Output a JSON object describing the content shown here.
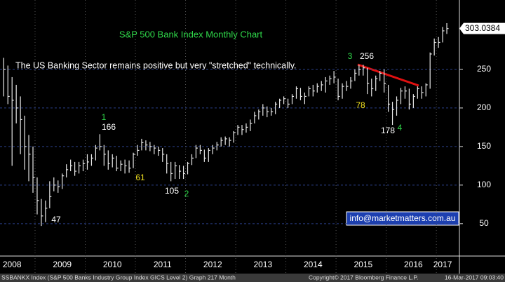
{
  "chart_data": {
    "type": "hlc",
    "title": "S&P 500 Bank Index Monthly Chart",
    "subtitle": "The US Banking Sector remains positive but very \"stretched\" technically.",
    "categories": [
      null,
      null,
      "2008",
      null,
      null,
      null,
      null,
      null,
      null,
      null,
      null,
      null,
      null,
      null,
      "2009",
      null,
      null,
      null,
      null,
      null,
      null,
      null,
      null,
      null,
      null,
      null,
      "2010",
      null,
      null,
      null,
      null,
      null,
      null,
      null,
      null,
      null,
      null,
      null,
      "2011",
      null,
      null,
      null,
      null,
      null,
      null,
      null,
      null,
      null,
      null,
      null,
      "2012",
      null,
      null,
      null,
      null,
      null,
      null,
      null,
      null,
      null,
      null,
      null,
      "2013",
      null,
      null,
      null,
      null,
      null,
      null,
      null,
      null,
      null,
      null,
      null,
      "2014",
      null,
      null,
      null,
      null,
      null,
      null,
      null,
      null,
      null,
      null,
      null,
      "2015",
      null,
      null,
      null,
      null,
      null,
      null,
      null,
      null,
      null,
      null,
      null,
      "2016",
      null,
      null,
      null,
      null,
      null,
      null,
      "2017",
      null
    ],
    "high": [
      265,
      255,
      240,
      230,
      215,
      190,
      165,
      150,
      110,
      82,
      80,
      105,
      110,
      106,
      115,
      127,
      133,
      130,
      130,
      133,
      140,
      140,
      152,
      166,
      152,
      145,
      140,
      138,
      132,
      133,
      132,
      142,
      152,
      160,
      158,
      156,
      152,
      150,
      148,
      140,
      130,
      130,
      126,
      125,
      130,
      140,
      152,
      152,
      146,
      148,
      152,
      156,
      162,
      163,
      162,
      170,
      178,
      178,
      180,
      185,
      195,
      198,
      205,
      202,
      200,
      208,
      212,
      215,
      212,
      218,
      228,
      226,
      220,
      228,
      230,
      232,
      235,
      240,
      242,
      248,
      238,
      232,
      235,
      240,
      250,
      256,
      256,
      252,
      238,
      242,
      248,
      250,
      230,
      208,
      215,
      226,
      228,
      225,
      218,
      228,
      228,
      232,
      272,
      290,
      292,
      305,
      310
    ],
    "low": [
      215,
      205,
      125,
      180,
      140,
      120,
      105,
      90,
      62,
      47,
      52,
      70,
      92,
      90,
      95,
      110,
      118,
      112,
      115,
      118,
      120,
      125,
      132,
      145,
      125,
      120,
      123,
      118,
      118,
      115,
      116,
      122,
      138,
      145,
      145,
      144,
      140,
      138,
      130,
      115,
      105,
      108,
      108,
      108,
      114,
      126,
      135,
      140,
      130,
      130,
      140,
      145,
      150,
      152,
      150,
      155,
      165,
      165,
      168,
      170,
      180,
      185,
      190,
      188,
      190,
      192,
      200,
      205,
      200,
      205,
      212,
      210,
      205,
      215,
      215,
      220,
      222,
      220,
      230,
      232,
      210,
      212,
      222,
      225,
      235,
      242,
      242,
      218,
      215,
      222,
      235,
      220,
      195,
      178,
      190,
      205,
      212,
      198,
      200,
      212,
      212,
      215,
      225,
      268,
      278,
      285,
      296
    ],
    "close": [
      250,
      215,
      210,
      200,
      185,
      150,
      140,
      110,
      80,
      60,
      70,
      85,
      100,
      98,
      112,
      120,
      125,
      118,
      125,
      128,
      130,
      135,
      148,
      150,
      140,
      128,
      135,
      122,
      127,
      125,
      122,
      140,
      145,
      155,
      152,
      150,
      148,
      145,
      140,
      128,
      115,
      125,
      118,
      115,
      128,
      135,
      148,
      145,
      135,
      145,
      148,
      152,
      158,
      160,
      158,
      168,
      175,
      172,
      175,
      180,
      190,
      195,
      200,
      195,
      195,
      205,
      210,
      212,
      205,
      215,
      225,
      215,
      215,
      225,
      222,
      228,
      230,
      235,
      238,
      240,
      215,
      228,
      228,
      235,
      245,
      250,
      252,
      232,
      225,
      238,
      245,
      232,
      205,
      198,
      210,
      222,
      222,
      205,
      215,
      225,
      220,
      230,
      270,
      285,
      285,
      300,
      303
    ],
    "color": "#e8e8e8",
    "ylim": [
      8,
      340
    ],
    "yticks": [
      50,
      100,
      150,
      200,
      250
    ],
    "grid": true,
    "last_price": 303.0384,
    "annotations": [
      "47",
      "1",
      "166",
      "61",
      "105",
      "2",
      "3",
      "256",
      "78",
      "178",
      "4"
    ],
    "watermark": "info@marketmatters.com.au",
    "footer": {
      "left": "SSBANKX Index (S&P 500 Banks Industry Group Index GICS Level 2) Graph 217  Month",
      "middle": "Copyright© 2017 Bloomberg Finance L.P.",
      "right": "16-Mar-2017 09:03:40"
    }
  }
}
